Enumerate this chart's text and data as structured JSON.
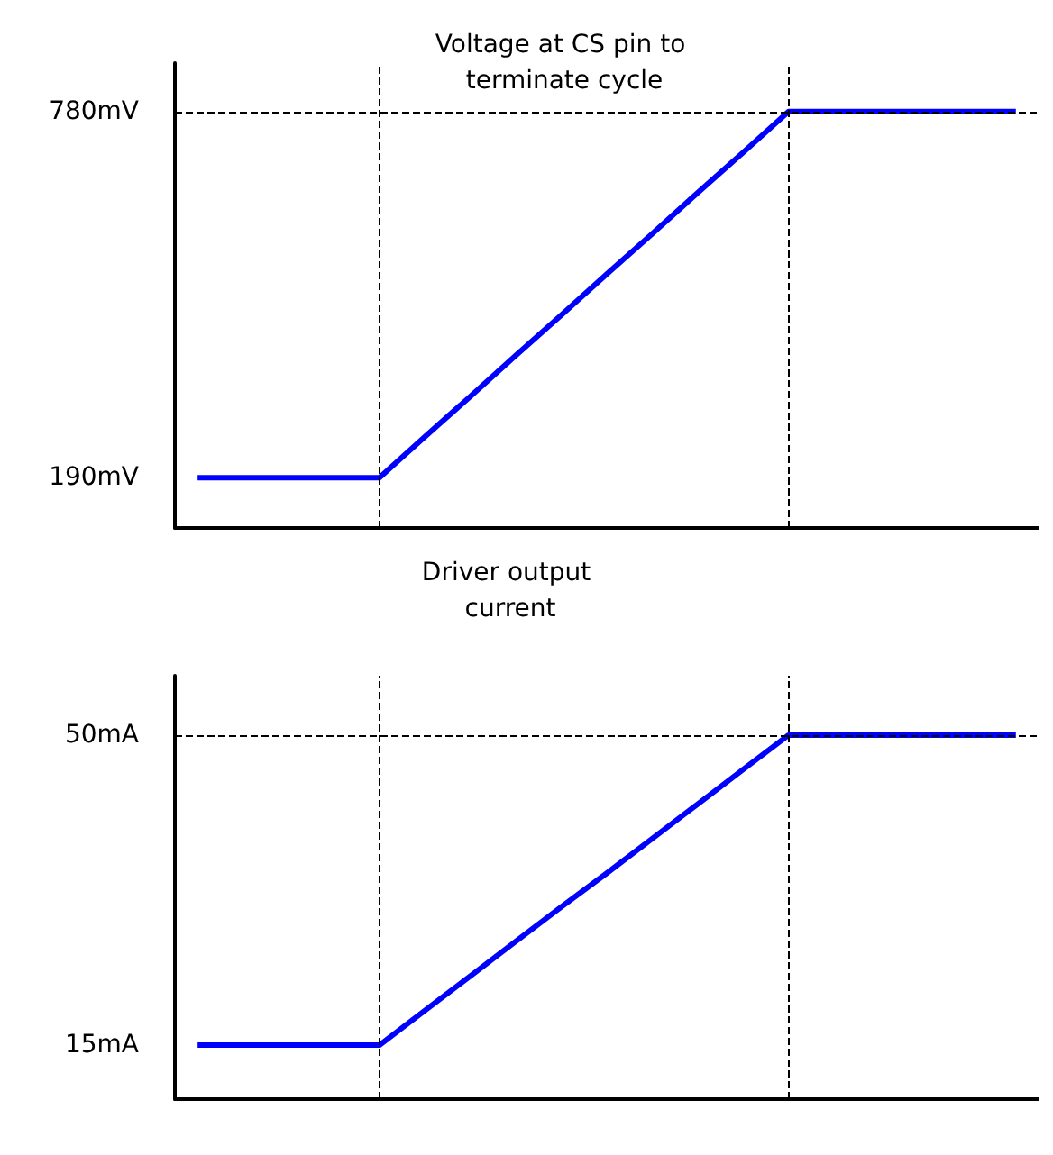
{
  "chart_data": [
    {
      "type": "line",
      "title": "Voltage at CS pin to terminate cycle",
      "categories": [
        null,
        null,
        null,
        null,
        null,
        null,
        null,
        null,
        null,
        null,
        null,
        null,
        null,
        null,
        null,
        null,
        null,
        null,
        null
      ],
      "ylim": [
        109,
        858
      ],
      "yticks": [
        {
          "value": 190,
          "label": "190mV"
        },
        {
          "value": 780,
          "label": "780mV"
        }
      ],
      "tick_labels": "y",
      "grid": false,
      "marker": "none",
      "series": [
        {
          "color": "#0000ff",
          "values": [
            190,
            190,
            190,
            190,
            190,
            256,
            321,
            387,
            452,
            518,
            583,
            649,
            714,
            780,
            780,
            780,
            780,
            780,
            780
          ]
        }
      ],
      "ref_lines": [
        {
          "axis": "y",
          "value": 780,
          "line_style": "dashed",
          "color": "#000000"
        }
      ]
    },
    {
      "type": "line",
      "title": "Driver output current",
      "categories": [
        null,
        null,
        null,
        null,
        null,
        null,
        null,
        null,
        null,
        null,
        null,
        null,
        null,
        null,
        null,
        null,
        null,
        null,
        null
      ],
      "ylim": [
        8.9,
        56.7
      ],
      "yticks": [
        {
          "value": 15,
          "label": "15mA"
        },
        {
          "value": 50,
          "label": "50mA"
        }
      ],
      "tick_labels": "y",
      "grid": false,
      "marker": "none",
      "series": [
        {
          "color": "#0000ff",
          "values": [
            15,
            15,
            15,
            15,
            15,
            18.9,
            22.8,
            26.7,
            30.6,
            34.4,
            38.3,
            42.2,
            46.1,
            50,
            50,
            50,
            50,
            50,
            50
          ]
        }
      ],
      "ref_lines": [
        {
          "axis": "y",
          "value": 50,
          "line_style": "dashed",
          "color": "#000000"
        }
      ]
    }
  ]
}
